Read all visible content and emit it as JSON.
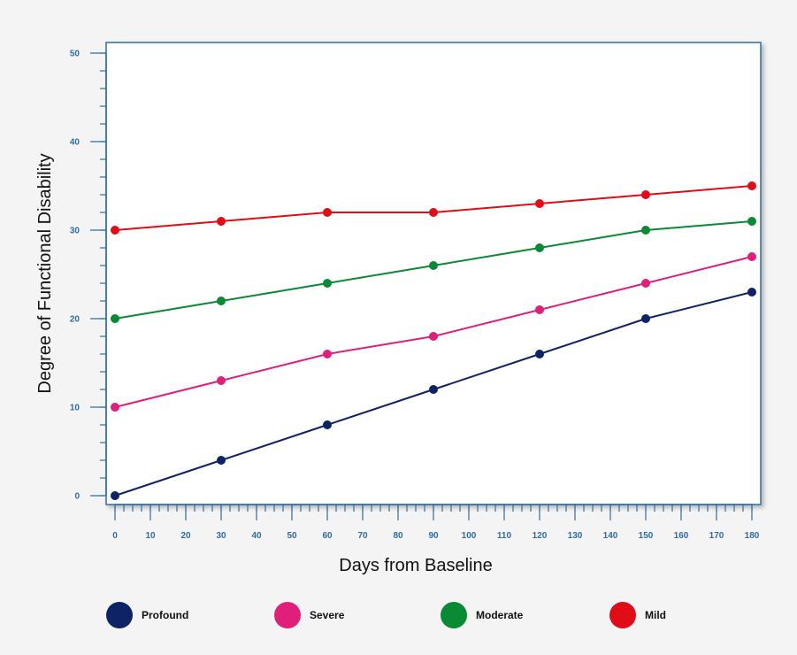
{
  "chart_data": {
    "type": "line",
    "title": "",
    "xlabel": "Days from Baseline",
    "ylabel": "Degree of Functional Disability",
    "xlim": [
      0,
      180
    ],
    "ylim": [
      0,
      50
    ],
    "x_ticks": [
      0,
      10,
      20,
      30,
      40,
      50,
      60,
      70,
      80,
      90,
      100,
      110,
      120,
      130,
      140,
      150,
      160,
      170,
      180
    ],
    "y_ticks": [
      0,
      10,
      20,
      30,
      40,
      50
    ],
    "grid": false,
    "legend_position": "bottom",
    "x": [
      0,
      30,
      60,
      90,
      120,
      150,
      180
    ],
    "series": [
      {
        "name": "Profound",
        "color": "#0d2366",
        "values": [
          0,
          4,
          8,
          12,
          16,
          20,
          23
        ]
      },
      {
        "name": "Severe",
        "color": "#df1f7a",
        "values": [
          10,
          13,
          16,
          18,
          21,
          24,
          27
        ]
      },
      {
        "name": "Moderate",
        "color": "#0a8a35",
        "values": [
          20,
          22,
          24,
          26,
          28,
          30,
          31
        ]
      },
      {
        "name": "Mild",
        "color": "#e00d16",
        "values": [
          30,
          31,
          32,
          32,
          33,
          34,
          35
        ]
      }
    ],
    "colors": {
      "axis": "#2e6da4",
      "plot_background": "#ffffff"
    }
  }
}
